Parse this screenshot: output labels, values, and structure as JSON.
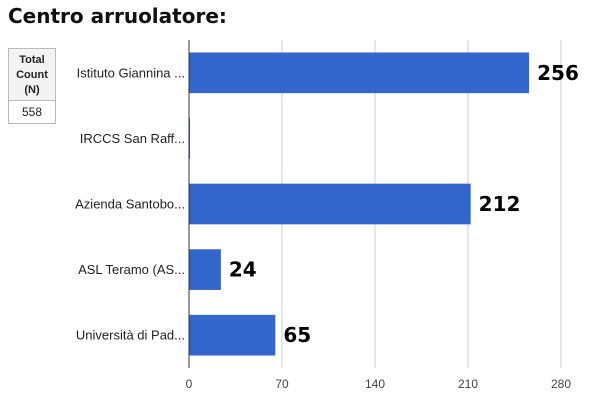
{
  "title": "Centro arruolatore:",
  "count_box": {
    "header": "Total\nCount\n(N)",
    "value": "558"
  },
  "chart_data": {
    "type": "bar",
    "orientation": "horizontal",
    "categories": [
      "Istituto Giannina ...",
      "IRCCS San Raff...",
      "Azienda Santobo...",
      "ASL Teramo (AS...",
      "Università di Pad..."
    ],
    "values": [
      256,
      0,
      212,
      24,
      65
    ],
    "data_labels": [
      "256",
      "",
      "212",
      "24",
      "65"
    ],
    "x_ticks": [
      0,
      70,
      140,
      210,
      280
    ],
    "xlim": [
      0,
      280
    ],
    "grid": true,
    "bar_color": "#3366cc"
  }
}
